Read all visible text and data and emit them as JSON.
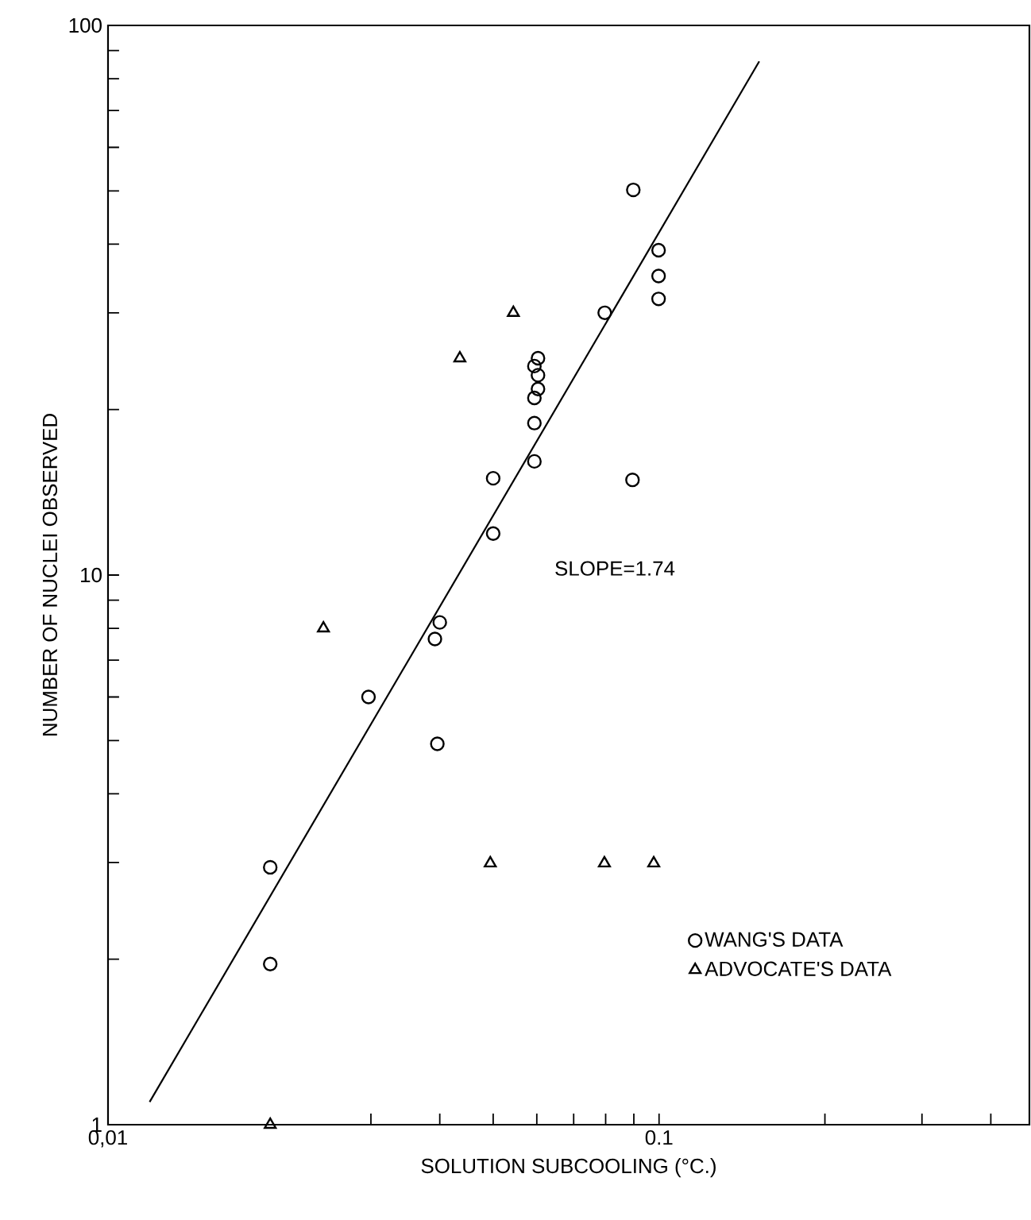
{
  "chart_data": {
    "type": "scatter",
    "xlabel": "SOLUTION SUBCOOLING (°C.)",
    "ylabel": "NUMBER OF NUCLEI OBSERVED",
    "log": "xy",
    "xlim": [
      0.01,
      0.47
    ],
    "ylim": [
      1,
      100
    ],
    "xticks": [
      {
        "value": 0.01,
        "label": "0,01"
      },
      {
        "value": 0.03,
        "label": null
      },
      {
        "value": 0.04,
        "label": null
      },
      {
        "value": 0.05,
        "label": null
      },
      {
        "value": 0.06,
        "label": null
      },
      {
        "value": 0.07,
        "label": null
      },
      {
        "value": 0.08,
        "label": null
      },
      {
        "value": 0.09,
        "label": null
      },
      0.1,
      {
        "value": 0.2,
        "label": null
      },
      {
        "value": 0.3,
        "label": null
      },
      {
        "value": 0.4,
        "label": null
      }
    ],
    "yticks": [
      1,
      {
        "value": 2,
        "label": null
      },
      {
        "value": 3,
        "label": null
      },
      {
        "value": 4,
        "label": null
      },
      {
        "value": 5,
        "label": null
      },
      {
        "value": 6,
        "label": null
      },
      {
        "value": 7,
        "label": null
      },
      {
        "value": 8,
        "label": null
      },
      {
        "value": 9,
        "label": null
      },
      10,
      {
        "value": 20,
        "label": null
      },
      {
        "value": 30,
        "label": null
      },
      {
        "value": 40,
        "label": null
      },
      {
        "value": 50,
        "label": null
      },
      {
        "value": 60,
        "label": null
      },
      {
        "value": 70,
        "label": null
      },
      {
        "value": 80,
        "label": null
      },
      {
        "value": 90,
        "label": null
      },
      100
    ],
    "legend": "bottom right",
    "annotations": [
      "SLOPE=1.74"
    ],
    "series": [
      {
        "name": "WANG'S DATA",
        "color": "#000000",
        "marker": "circle",
        "x": [
          0.0898,
          0.0998,
          0.0998,
          0.0998,
          0.0797,
          0.0603,
          0.0594,
          0.0603,
          0.0603,
          0.0594,
          0.0594,
          0.0594,
          0.05,
          0.0895,
          0.05,
          0.04,
          0.0392,
          0.0297,
          0.0396,
          0.0197,
          0.0197
        ],
        "values": [
          50.2,
          39.0,
          35.0,
          31.8,
          30.0,
          24.8,
          24.0,
          23.1,
          21.8,
          21.0,
          18.9,
          16.1,
          15.0,
          14.9,
          11.9,
          8.2,
          7.65,
          6.0,
          4.93,
          2.94,
          1.96
        ]
      },
      {
        "name": "ADVOCATE'S DATA",
        "color": "#000000",
        "marker": "triangle",
        "x": [
          0.0544,
          0.0435,
          0.0246,
          0.0494,
          0.0796,
          0.0978,
          0.0197
        ],
        "values": [
          30.0,
          24.8,
          8.0,
          2.99,
          2.99,
          2.99,
          1.0
        ]
      },
      {
        "type": "line",
        "color": "#000000",
        "marker": "none",
        "line_style": "solid",
        "x": [
          0.0119,
          0.152
        ],
        "values": [
          1.1,
          86
        ]
      }
    ]
  }
}
